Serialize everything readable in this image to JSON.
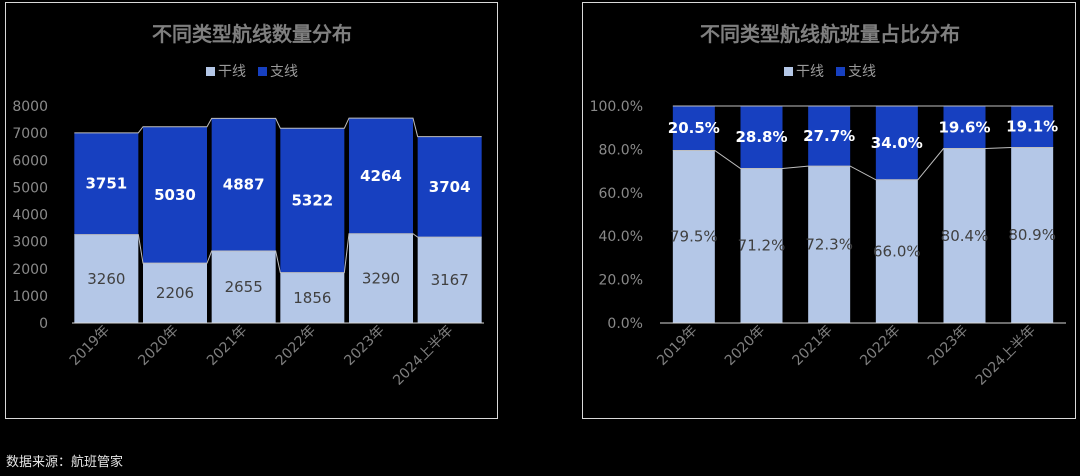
{
  "colors": {
    "background": "#000000",
    "series_low": "#b4c7e7",
    "series_high": "#1740c0",
    "connector": "#bfbfbf",
    "axis": "#d9d9d9"
  },
  "source_note": "数据来源：航班管家",
  "chart_data": [
    {
      "type": "bar",
      "stacked": true,
      "title": "不同类型航线数量分布",
      "categories": [
        "2019年",
        "2020年",
        "2021年",
        "2022年",
        "2023年",
        "2024上半年"
      ],
      "series": [
        {
          "name": "干线",
          "values": [
            3260,
            2206,
            2655,
            1856,
            3290,
            3167
          ]
        },
        {
          "name": "支线",
          "values": [
            3751,
            5030,
            4887,
            5322,
            4264,
            3704
          ]
        }
      ],
      "ylim": [
        0,
        8000
      ],
      "yticks": [
        "0",
        "1000",
        "2000",
        "3000",
        "4000",
        "5000",
        "6000",
        "7000",
        "8000"
      ],
      "data_labels": {
        "low": [
          "3260",
          "2206",
          "2655",
          "1856",
          "3290",
          "3167"
        ],
        "high": [
          "3751",
          "5030",
          "4887",
          "5322",
          "4264",
          "3704"
        ]
      },
      "series_lines": true,
      "legend_position": "top",
      "grid": false
    },
    {
      "type": "bar",
      "stacked": true,
      "title": "不同类型航线航班量占比分布",
      "categories": [
        "2019年",
        "2020年",
        "2021年",
        "2022年",
        "2023年",
        "2024上半年"
      ],
      "series": [
        {
          "name": "干线",
          "values": [
            79.5,
            71.2,
            72.3,
            66.0,
            80.4,
            80.9
          ]
        },
        {
          "name": "支线",
          "values": [
            20.5,
            28.8,
            27.7,
            34.0,
            19.6,
            19.1
          ]
        }
      ],
      "ylim": [
        0,
        100
      ],
      "yticks": [
        "0.0%",
        "20.0%",
        "40.0%",
        "60.0%",
        "80.0%",
        "100.0%"
      ],
      "data_labels": {
        "low": [
          "79.5%",
          "71.2%",
          "72.3%",
          "66.0%",
          "80.4%",
          "80.9%"
        ],
        "high": [
          "20.5%",
          "28.8%",
          "27.7%",
          "34.0%",
          "19.6%",
          "19.1%"
        ]
      },
      "series_lines": true,
      "legend_position": "top",
      "grid": false
    }
  ]
}
